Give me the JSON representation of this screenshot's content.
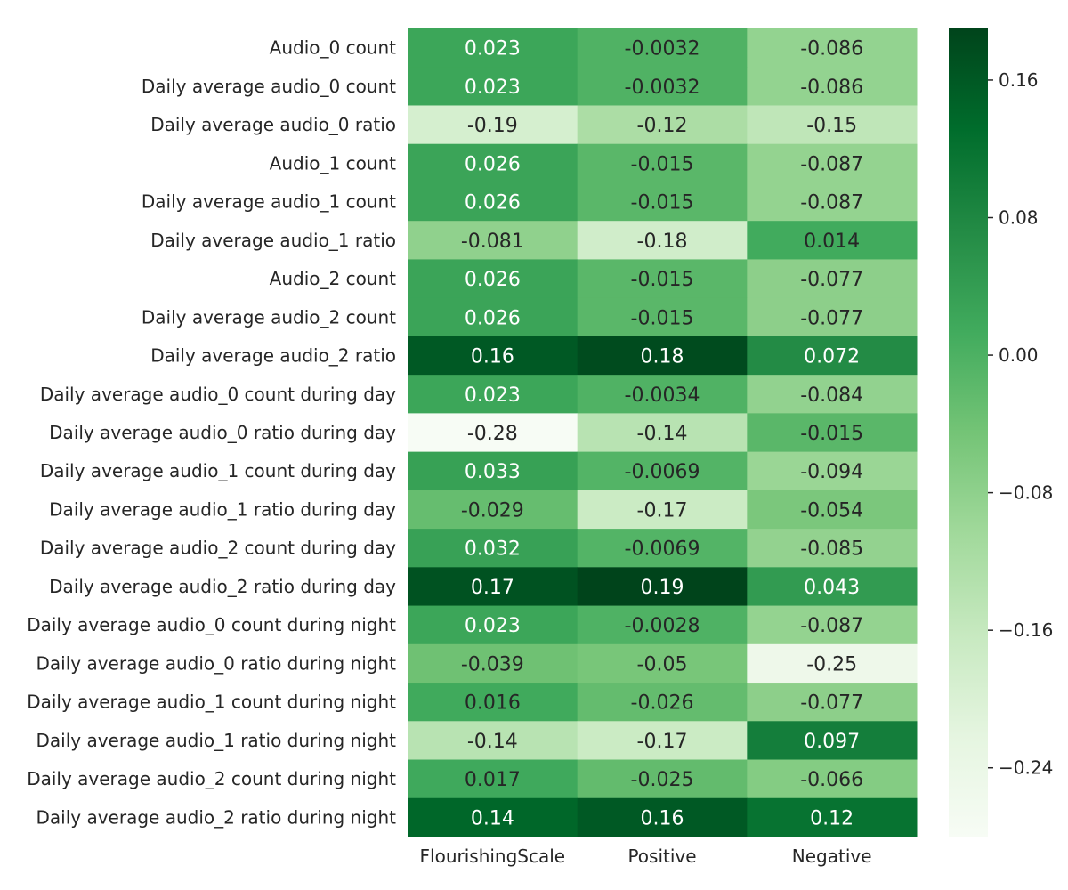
{
  "chart_data": {
    "type": "heatmap",
    "title": "",
    "xlabel": "",
    "ylabel": "",
    "columns": [
      "FlourishingScale",
      "Positive",
      "Negative"
    ],
    "rows": [
      "Audio_0 count",
      "Daily average audio_0 count",
      "Daily average audio_0 ratio",
      "Audio_1 count",
      "Daily average audio_1 count",
      "Daily average audio_1 ratio",
      "Audio_2 count",
      "Daily average audio_2 count",
      "Daily average audio_2 ratio",
      "Daily average audio_0 count during day",
      "Daily average audio_0 ratio during day",
      "Daily average audio_1 count during day",
      "Daily average audio_1 ratio during day",
      "Daily average audio_2 count during day",
      "Daily average audio_2 ratio during day",
      "Daily average audio_0 count during night",
      "Daily average audio_0 ratio during night",
      "Daily average audio_1 count during night",
      "Daily average audio_1 ratio during night",
      "Daily average audio_2 count during night",
      "Daily average audio_2 ratio during night"
    ],
    "values": [
      [
        0.023,
        -0.0032,
        -0.086
      ],
      [
        0.023,
        -0.0032,
        -0.086
      ],
      [
        -0.19,
        -0.12,
        -0.15
      ],
      [
        0.026,
        -0.015,
        -0.087
      ],
      [
        0.026,
        -0.015,
        -0.087
      ],
      [
        -0.081,
        -0.18,
        0.014
      ],
      [
        0.026,
        -0.015,
        -0.077
      ],
      [
        0.026,
        -0.015,
        -0.077
      ],
      [
        0.16,
        0.18,
        0.072
      ],
      [
        0.023,
        -0.0034,
        -0.084
      ],
      [
        -0.28,
        -0.14,
        -0.015
      ],
      [
        0.033,
        -0.0069,
        -0.094
      ],
      [
        -0.029,
        -0.17,
        -0.054
      ],
      [
        0.032,
        -0.0069,
        -0.085
      ],
      [
        0.17,
        0.19,
        0.043
      ],
      [
        0.023,
        -0.0028,
        -0.087
      ],
      [
        -0.039,
        -0.05,
        -0.25
      ],
      [
        0.016,
        -0.026,
        -0.077
      ],
      [
        -0.14,
        -0.17,
        0.097
      ],
      [
        0.017,
        -0.025,
        -0.066
      ],
      [
        0.14,
        0.16,
        0.12
      ]
    ],
    "value_labels": [
      [
        "0.023",
        "-0.0032",
        "-0.086"
      ],
      [
        "0.023",
        "-0.0032",
        "-0.086"
      ],
      [
        "-0.19",
        "-0.12",
        "-0.15"
      ],
      [
        "0.026",
        "-0.015",
        "-0.087"
      ],
      [
        "0.026",
        "-0.015",
        "-0.087"
      ],
      [
        "-0.081",
        "-0.18",
        "0.014"
      ],
      [
        "0.026",
        "-0.015",
        "-0.077"
      ],
      [
        "0.026",
        "-0.015",
        "-0.077"
      ],
      [
        "0.16",
        "0.18",
        "0.072"
      ],
      [
        "0.023",
        "-0.0034",
        "-0.084"
      ],
      [
        "-0.28",
        "-0.14",
        "-0.015"
      ],
      [
        "0.033",
        "-0.0069",
        "-0.094"
      ],
      [
        "-0.029",
        "-0.17",
        "-0.054"
      ],
      [
        "0.032",
        "-0.0069",
        "-0.085"
      ],
      [
        "0.17",
        "0.19",
        "0.043"
      ],
      [
        "0.023",
        "-0.0028",
        "-0.087"
      ],
      [
        "-0.039",
        "-0.05",
        "-0.25"
      ],
      [
        "0.016",
        "-0.026",
        "-0.077"
      ],
      [
        "-0.14",
        "-0.17",
        "0.097"
      ],
      [
        "0.017",
        "-0.025",
        "-0.066"
      ],
      [
        "0.14",
        "0.16",
        "0.12"
      ]
    ],
    "colorbar": {
      "vmin": -0.28,
      "vmax": 0.19,
      "ticks": [
        0.16,
        0.08,
        0.0,
        -0.08,
        -0.16,
        -0.24
      ],
      "tick_labels": [
        "0.16",
        "0.08",
        "0.00",
        "−0.08",
        "−0.16",
        "−0.24"
      ],
      "colormap": "Greens",
      "colors": [
        "#f7fcf5",
        "#e5f5e0",
        "#c7e9c0",
        "#a1d99b",
        "#74c476",
        "#41ab5d",
        "#238b45",
        "#006d2c",
        "#00441b"
      ]
    }
  }
}
